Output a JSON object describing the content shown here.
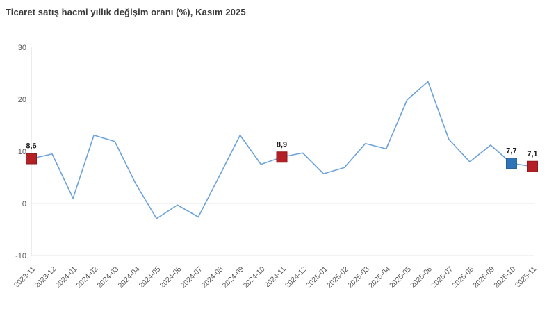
{
  "title": "Ticaret satış hacmi yıllık değişim oranı (%), Kasım 2025",
  "colors": {
    "background": "#ffffff",
    "line": "#6ba2d9",
    "marker_red": "#b32025",
    "marker_red_border": "#8f191d",
    "marker_blue": "#2e74b6",
    "marker_blue_border": "#255f94",
    "grid": "#e7e7e7",
    "axis": "#d9d9d9",
    "tick_text": "#595959",
    "title_text": "#3a3a3a",
    "data_label": "#1a1a1a"
  },
  "chart_data": {
    "type": "line",
    "title": "Ticaret satış hacmi yıllık değişim oranı (%), Kasım 2025",
    "xlabel": "",
    "ylabel": "",
    "ylim": [
      -10,
      30
    ],
    "yticks": [
      30,
      20,
      10,
      0,
      -10
    ],
    "grid": "horizontal lines at 0 and -10 only, light gray; vertical y-axis line at left",
    "legend": "none",
    "x": [
      "2023-11",
      "2023-12",
      "2024-01",
      "2024-02",
      "2024-03",
      "2024-04",
      "2024-05",
      "2024-06",
      "2024-07",
      "2024-08",
      "2024-09",
      "2024-10",
      "2024-11",
      "2024-12",
      "2025-01",
      "2025-02",
      "2025-03",
      "2025-04",
      "2025-05",
      "2025-06",
      "2025-07",
      "2025-08",
      "2025-09",
      "2025-10",
      "2025-11"
    ],
    "series": [
      {
        "name": "Ticaret satış hacmi yıllık değişim oranı (%)",
        "values": [
          8.6,
          9.5,
          1.0,
          13.1,
          11.9,
          3.8,
          -2.9,
          -0.3,
          -2.6,
          5.2,
          13.1,
          7.5,
          8.9,
          9.7,
          5.7,
          6.9,
          11.5,
          10.5,
          19.9,
          23.4,
          12.3,
          8.0,
          11.2,
          7.7,
          7.1
        ]
      }
    ],
    "highlighted_points": [
      {
        "month": "2023-11",
        "value": 8.6,
        "label": "8,6",
        "marker": "red-square"
      },
      {
        "month": "2024-11",
        "value": 8.9,
        "label": "8,9",
        "marker": "red-square"
      },
      {
        "month": "2025-10",
        "value": 7.7,
        "label": "7,7",
        "marker": "blue-square"
      },
      {
        "month": "2025-11",
        "value": 7.1,
        "label": "7,1",
        "marker": "red-square"
      }
    ]
  }
}
